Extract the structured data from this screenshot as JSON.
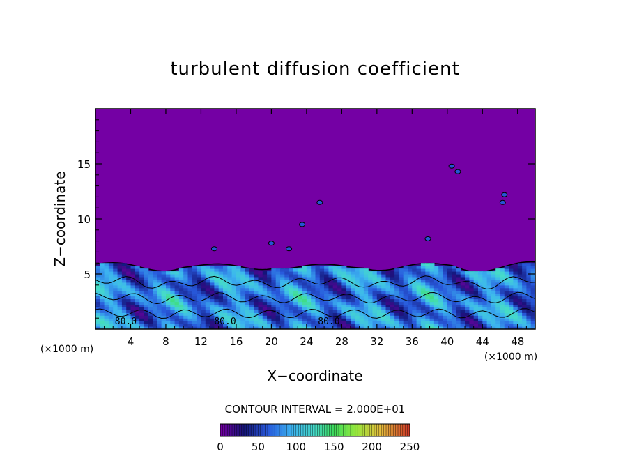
{
  "chart_data": {
    "type": "heatmap",
    "title": "turbulent diffusion coefficient",
    "xlabel": "X−coordinate",
    "ylabel": "Z−coordinate",
    "x_unit_label": "(×1000 m)",
    "y_unit_label": "(×1000 m)",
    "xlim": [
      0,
      50
    ],
    "ylim": [
      0,
      20
    ],
    "x_ticks": [
      4,
      8,
      12,
      16,
      20,
      24,
      28,
      32,
      36,
      40,
      44,
      48
    ],
    "x_tick_labels": [
      "4",
      "8",
      "12",
      "16",
      "20",
      "24",
      "28",
      "32",
      "36",
      "40",
      "44",
      "48"
    ],
    "y_ticks": [
      5,
      10,
      15
    ],
    "y_tick_labels": [
      "5",
      "10",
      "15"
    ],
    "contour_interval_text": "CONTOUR INTERVAL = 2.000E+01",
    "contour_interval": 20,
    "contour_labels": [
      "80.0",
      "80.0",
      "80.0"
    ],
    "colorbar": {
      "min": 0,
      "max": 250,
      "ticks": [
        0,
        50,
        100,
        150,
        200,
        250
      ],
      "tick_labels": [
        "0",
        "50",
        "100",
        "150",
        "200",
        "250"
      ]
    },
    "field_summary": {
      "background_value": 0,
      "turbulent_layer_top_approx": [
        5.5,
        6.3
      ],
      "layer_value_range": [
        20,
        140
      ]
    },
    "grid": false,
    "legend": "colorbar below chart"
  },
  "colors": {
    "background_purple": "#7400a4",
    "axis": "#000000"
  }
}
